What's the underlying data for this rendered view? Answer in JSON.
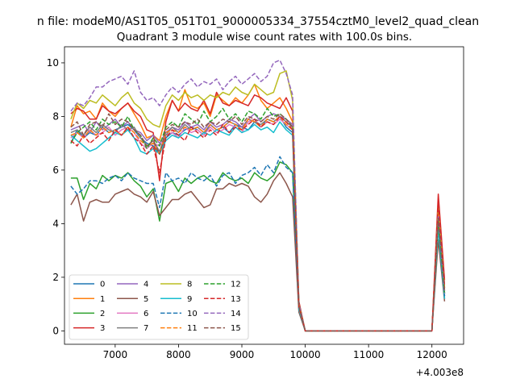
{
  "figure": {
    "suptitle": "n file: modeM0/AS1T05_051T01_9000005334_37554cztM0_level2_quad_clean",
    "offset_label": "+4.003e8"
  },
  "chart_data": {
    "type": "line",
    "title": "Quadrant 3 module wise count rates with 100.0s bins.",
    "xlabel": "",
    "ylabel": "",
    "xlim": [
      6200,
      12500
    ],
    "ylim": [
      -0.5,
      10.6
    ],
    "x_offset": 400300000,
    "xticks": [
      7000,
      8000,
      9000,
      10000,
      11000,
      12000
    ],
    "xtick_labels": [
      "7000",
      "8000",
      "9000",
      "10000",
      "11000",
      "12000"
    ],
    "yticks": [
      0,
      2,
      4,
      6,
      8,
      10
    ],
    "ytick_labels": [
      "0",
      "2",
      "4",
      "6",
      "8",
      "10"
    ],
    "grid": false,
    "legend": {
      "placement": "lower-left",
      "columns": 4
    },
    "x": [
      6300,
      6400,
      6500,
      6600,
      6700,
      6800,
      6900,
      7000,
      7100,
      7200,
      7300,
      7400,
      7500,
      7600,
      7700,
      7800,
      7900,
      8000,
      8100,
      8200,
      8300,
      8400,
      8500,
      8600,
      8700,
      8800,
      8900,
      9000,
      9100,
      9200,
      9300,
      9400,
      9500,
      9600,
      9700,
      9800,
      9900,
      10000,
      12000,
      12100,
      12200
    ],
    "series": [
      {
        "name": "0",
        "color": "#1f77b4",
        "values": [
          7.0,
          7.5,
          7.2,
          7.4,
          7.3,
          7.6,
          7.4,
          7.5,
          7.6,
          7.7,
          7.5,
          7.2,
          7.0,
          6.9,
          6.6,
          7.2,
          7.4,
          7.3,
          7.5,
          7.6,
          7.5,
          7.3,
          7.7,
          7.5,
          7.6,
          7.4,
          7.7,
          7.6,
          7.5,
          7.8,
          7.6,
          7.9,
          7.8,
          8.0,
          7.6,
          7.4,
          1.0,
          0.0,
          0.0,
          3.9,
          1.2
        ]
      },
      {
        "name": "1",
        "color": "#ff7f0e",
        "values": [
          7.6,
          8.4,
          8.1,
          8.2,
          7.9,
          8.5,
          8.2,
          8.0,
          8.3,
          8.5,
          8.1,
          7.7,
          7.2,
          7.3,
          7.1,
          8.0,
          8.6,
          8.2,
          9.0,
          8.4,
          8.3,
          8.5,
          8.0,
          8.8,
          8.6,
          8.4,
          8.7,
          8.5,
          8.8,
          9.2,
          8.6,
          8.3,
          8.5,
          8.7,
          8.3,
          7.8,
          0.9,
          0.0,
          0.0,
          4.5,
          1.6
        ]
      },
      {
        "name": "2",
        "color": "#2ca02c",
        "values": [
          5.7,
          5.7,
          4.9,
          5.5,
          5.3,
          5.8,
          5.6,
          5.8,
          5.7,
          5.9,
          5.6,
          5.4,
          5.0,
          5.3,
          4.1,
          5.5,
          5.6,
          5.2,
          5.7,
          5.5,
          5.7,
          5.8,
          5.6,
          5.5,
          5.9,
          5.7,
          5.6,
          5.7,
          5.5,
          5.9,
          5.7,
          5.6,
          5.8,
          6.3,
          6.2,
          5.9,
          0.9,
          0.0,
          0.0,
          4.2,
          1.4
        ]
      },
      {
        "name": "3",
        "color": "#d62728",
        "values": [
          8.1,
          8.3,
          8.2,
          7.9,
          7.9,
          8.4,
          8.2,
          8.1,
          8.3,
          8.5,
          8.2,
          8.0,
          7.5,
          7.4,
          5.6,
          7.8,
          8.6,
          8.2,
          8.5,
          8.3,
          8.2,
          8.6,
          8.1,
          8.9,
          8.5,
          8.4,
          8.6,
          8.5,
          8.4,
          8.8,
          8.7,
          8.5,
          8.4,
          8.3,
          8.7,
          8.2,
          1.1,
          0.0,
          0.0,
          5.1,
          1.9
        ]
      },
      {
        "name": "4",
        "color": "#9467bd",
        "values": [
          7.5,
          7.6,
          7.7,
          7.4,
          7.8,
          7.5,
          7.7,
          7.9,
          7.6,
          7.8,
          7.5,
          7.4,
          7.1,
          7.3,
          7.0,
          7.4,
          7.6,
          7.5,
          7.8,
          7.6,
          7.7,
          7.5,
          7.8,
          7.6,
          7.7,
          7.9,
          7.8,
          7.6,
          7.9,
          8.1,
          7.8,
          8.0,
          8.1,
          8.0,
          7.9,
          7.7,
          0.8,
          0.0,
          0.0,
          4.3,
          1.3
        ]
      },
      {
        "name": "5",
        "color": "#8c564b",
        "values": [
          4.7,
          5.1,
          4.1,
          4.8,
          4.9,
          4.8,
          4.8,
          5.1,
          5.2,
          5.3,
          5.1,
          5.0,
          4.8,
          5.2,
          4.3,
          4.6,
          4.9,
          4.9,
          5.1,
          5.2,
          4.9,
          4.6,
          4.7,
          5.3,
          5.3,
          5.5,
          5.4,
          5.5,
          5.4,
          5.0,
          4.8,
          5.1,
          5.6,
          5.9,
          5.5,
          5.0,
          0.7,
          0.0,
          0.0,
          3.4,
          1.1
        ]
      },
      {
        "name": "6",
        "color": "#e377c2",
        "values": [
          7.2,
          7.4,
          7.2,
          7.5,
          7.3,
          7.4,
          7.6,
          7.3,
          7.5,
          7.6,
          7.4,
          7.0,
          6.8,
          7.0,
          6.9,
          7.3,
          7.4,
          7.2,
          7.6,
          7.4,
          7.5,
          7.3,
          7.6,
          7.4,
          7.5,
          7.7,
          7.6,
          7.4,
          7.8,
          7.9,
          7.6,
          7.8,
          7.7,
          7.9,
          7.7,
          7.5,
          0.9,
          0.0,
          0.0,
          4.0,
          1.3
        ]
      },
      {
        "name": "7",
        "color": "#7f7f7f",
        "values": [
          7.4,
          7.5,
          7.3,
          7.6,
          7.4,
          7.7,
          7.5,
          7.4,
          7.7,
          7.5,
          7.6,
          7.2,
          6.9,
          7.1,
          6.7,
          7.3,
          7.6,
          7.4,
          7.7,
          7.5,
          7.6,
          7.4,
          7.7,
          7.5,
          7.6,
          7.8,
          7.7,
          7.5,
          7.9,
          7.8,
          7.7,
          7.9,
          7.8,
          8.0,
          7.8,
          7.6,
          0.9,
          0.0,
          0.0,
          4.1,
          1.4
        ]
      },
      {
        "name": "8",
        "color": "#bcbd22",
        "values": [
          7.9,
          8.5,
          8.3,
          8.6,
          8.5,
          8.8,
          8.6,
          8.4,
          8.7,
          8.9,
          8.5,
          8.3,
          7.9,
          7.7,
          7.6,
          8.4,
          8.8,
          8.6,
          8.9,
          8.7,
          8.8,
          8.6,
          8.8,
          8.7,
          8.9,
          8.8,
          9.1,
          8.9,
          8.8,
          9.2,
          9.0,
          8.8,
          8.9,
          9.6,
          9.7,
          8.6,
          1.0,
          0.0,
          0.0,
          4.6,
          1.6
        ]
      },
      {
        "name": "9",
        "color": "#17becf",
        "values": [
          7.3,
          7.1,
          6.9,
          6.7,
          6.8,
          7.0,
          7.2,
          7.4,
          7.3,
          7.5,
          7.2,
          6.7,
          6.6,
          6.8,
          6.6,
          7.1,
          7.3,
          7.2,
          7.4,
          7.3,
          7.2,
          7.4,
          7.3,
          7.5,
          7.4,
          7.3,
          7.6,
          7.4,
          7.5,
          7.7,
          7.5,
          7.6,
          7.4,
          7.8,
          7.5,
          7.3,
          0.8,
          0.0,
          0.0,
          3.8,
          1.2
        ]
      },
      {
        "name": "10",
        "color": "#1f77b4",
        "dashed": true,
        "values": [
          5.4,
          5.1,
          5.3,
          5.6,
          5.6,
          5.5,
          5.7,
          5.8,
          5.6,
          5.9,
          5.7,
          5.6,
          5.5,
          5.5,
          4.6,
          5.9,
          5.6,
          5.7,
          5.5,
          5.9,
          5.7,
          5.6,
          5.8,
          5.4,
          5.8,
          5.9,
          5.5,
          5.8,
          5.9,
          6.1,
          5.8,
          6.2,
          5.9,
          6.5,
          6.1,
          5.9,
          0.9,
          0.0,
          0.0,
          4.2,
          1.3
        ]
      },
      {
        "name": "11",
        "color": "#ff7f0e",
        "dashed": true,
        "values": [
          7.3,
          7.4,
          7.2,
          7.5,
          7.3,
          7.6,
          7.4,
          7.5,
          7.3,
          7.6,
          7.4,
          7.1,
          6.9,
          7.0,
          6.6,
          7.4,
          7.5,
          7.4,
          7.6,
          7.5,
          7.6,
          7.4,
          7.7,
          7.5,
          7.6,
          7.8,
          7.7,
          7.5,
          7.9,
          7.8,
          7.6,
          7.9,
          7.8,
          8.0,
          7.7,
          7.5,
          0.9,
          0.0,
          0.0,
          4.4,
          1.5
        ]
      },
      {
        "name": "12",
        "color": "#2ca02c",
        "dashed": true,
        "values": [
          7.0,
          7.4,
          7.6,
          7.8,
          7.5,
          7.9,
          7.7,
          7.8,
          7.6,
          8.0,
          7.5,
          7.3,
          6.8,
          7.2,
          6.9,
          7.6,
          7.8,
          7.6,
          8.1,
          7.9,
          7.7,
          8.2,
          7.8,
          8.0,
          8.3,
          7.9,
          8.1,
          7.8,
          8.2,
          8.1,
          7.9,
          8.3,
          8.0,
          8.1,
          7.9,
          7.6,
          1.0,
          0.0,
          0.0,
          4.1,
          1.4
        ]
      },
      {
        "name": "13",
        "color": "#d62728",
        "dashed": true,
        "values": [
          7.1,
          6.9,
          7.3,
          7.0,
          7.2,
          7.4,
          7.1,
          7.5,
          7.3,
          7.6,
          7.2,
          7.0,
          6.6,
          6.9,
          5.9,
          7.2,
          7.5,
          7.3,
          7.1,
          7.6,
          7.4,
          7.2,
          7.5,
          7.3,
          7.7,
          7.4,
          7.6,
          7.5,
          7.7,
          7.9,
          7.6,
          7.8,
          7.7,
          8.0,
          7.8,
          7.5,
          0.9,
          0.0,
          0.0,
          4.7,
          1.7
        ]
      },
      {
        "name": "14",
        "color": "#9467bd",
        "dashed": true,
        "values": [
          8.2,
          8.5,
          8.4,
          8.7,
          9.1,
          9.1,
          9.3,
          9.4,
          9.5,
          9.2,
          9.7,
          8.9,
          8.6,
          8.7,
          8.4,
          8.8,
          9.1,
          8.9,
          9.2,
          9.4,
          9.1,
          9.3,
          9.2,
          9.4,
          9.0,
          9.3,
          9.5,
          9.2,
          9.4,
          9.6,
          9.3,
          9.5,
          10.0,
          10.1,
          9.6,
          8.8,
          1.0,
          0.0,
          0.0,
          4.3,
          1.4
        ]
      },
      {
        "name": "15",
        "color": "#8c564b",
        "dashed": true,
        "values": [
          7.6,
          7.8,
          7.3,
          7.7,
          7.8,
          7.6,
          8.1,
          7.7,
          7.9,
          7.8,
          7.5,
          7.3,
          6.9,
          7.1,
          6.6,
          7.5,
          7.7,
          7.6,
          7.8,
          7.7,
          7.9,
          7.6,
          7.8,
          7.7,
          7.9,
          7.8,
          8.0,
          7.7,
          8.0,
          7.9,
          7.8,
          8.0,
          7.9,
          8.1,
          7.9,
          7.6,
          0.9,
          0.0,
          0.0,
          4.2,
          1.5
        ]
      }
    ]
  }
}
